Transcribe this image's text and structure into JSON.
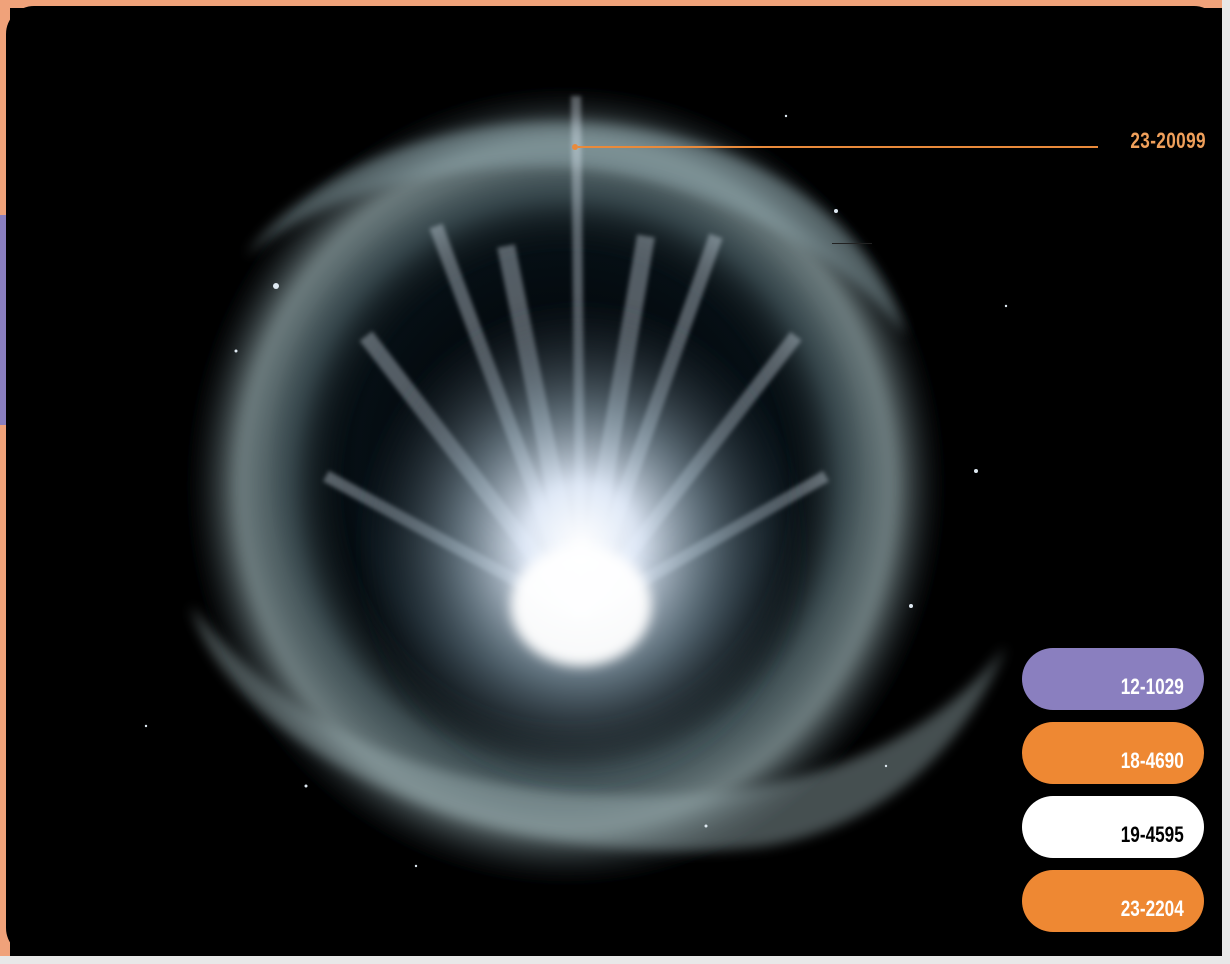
{
  "callout": {
    "label": "23-20099",
    "color": "#e98a3b"
  },
  "buttons": [
    {
      "label": "12-1029",
      "bg": "#8a7fbf",
      "fg": "#ffffff"
    },
    {
      "label": "18-4690",
      "bg": "#ee8833",
      "fg": "#ffffff"
    },
    {
      "label": "19-4595",
      "bg": "#ffffff",
      "fg": "#000000"
    },
    {
      "label": "23-2204",
      "bg": "#ee8833",
      "fg": "#ffffff"
    }
  ],
  "frame": {
    "accent_orange": "#f0a27a",
    "accent_purple": "#8a7fbf",
    "accent_white": "#e8e8e8"
  },
  "image": {
    "subject": "nebula-image"
  }
}
